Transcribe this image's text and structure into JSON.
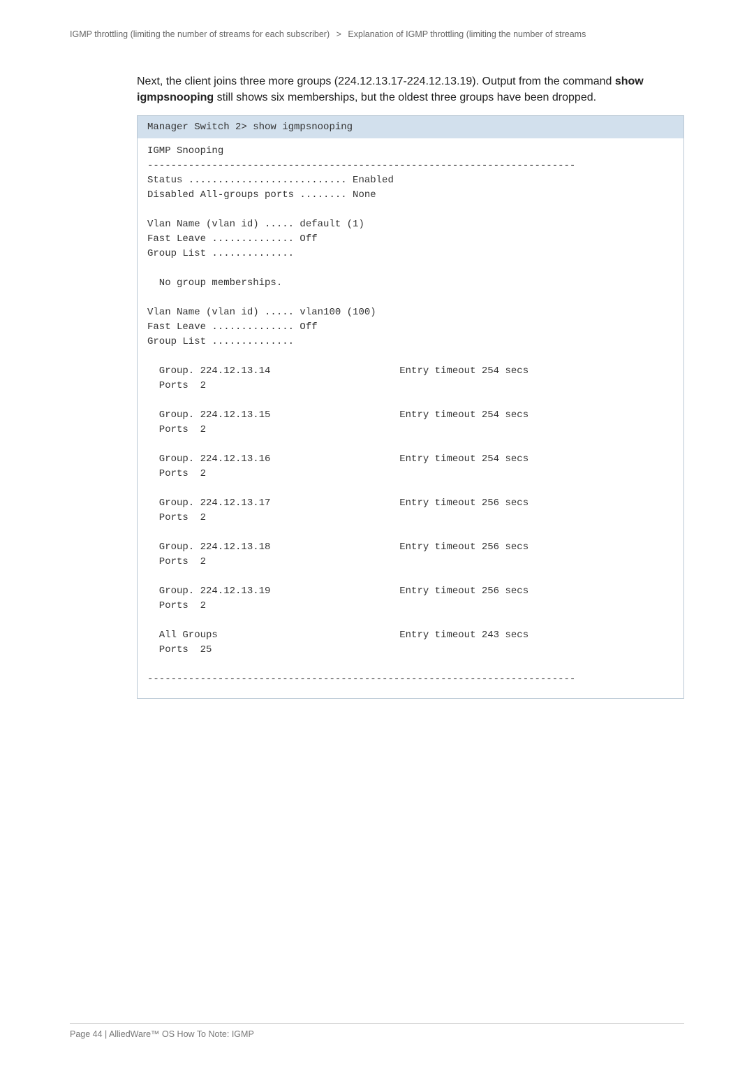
{
  "breadcrumb": {
    "part1": "IGMP throttling (limiting the number of streams for each subscriber)",
    "sep": ">",
    "part2": "Explanation of IGMP throttling (limiting the number of streams"
  },
  "paragraph": {
    "pre": "Next, the client joins three more groups (224.12.13.17-224.12.13.19). Output from the command ",
    "bold": "show igmpsnooping",
    "post": " still shows six memberships, but the oldest three groups have been dropped."
  },
  "terminal": {
    "header": "Manager Switch 2> show igmpsnooping",
    "title": "IGMP Snooping",
    "rule": "-------------------------------------------------------------------------",
    "status_line": "Status ........................... Enabled",
    "disabled_line": "Disabled All-groups ports ........ None",
    "vlan1_name": "Vlan Name (vlan id) ..... default (1)",
    "vlan1_fast": "Fast Leave .............. Off",
    "vlan1_group": "Group List ..............",
    "no_members": "  No group memberships.",
    "vlan2_name": "Vlan Name (vlan id) ..... vlan100 (100)",
    "vlan2_fast": "Fast Leave .............. Off",
    "vlan2_group": "Group List ..............",
    "g1_a": "  Group. 224.12.13.14                      Entry timeout 254 secs",
    "g1_b": "  Ports  2",
    "g2_a": "  Group. 224.12.13.15                      Entry timeout 254 secs",
    "g2_b": "  Ports  2",
    "g3_a": "  Group. 224.12.13.16                      Entry timeout 254 secs",
    "g3_b": "  Ports  2",
    "g4_a": "  Group. 224.12.13.17                      Entry timeout 256 secs",
    "g4_b": "  Ports  2",
    "g5_a": "  Group. 224.12.13.18                      Entry timeout 256 secs",
    "g5_b": "  Ports  2",
    "g6_a": "  Group. 224.12.13.19                      Entry timeout 256 secs",
    "g6_b": "  Ports  2",
    "all_a": "  All Groups                               Entry timeout 243 secs",
    "all_b": "  Ports  25",
    "rule2": "-------------------------------------------------------------------------"
  },
  "footer": {
    "text": "Page 44 | AlliedWare™ OS How To Note: IGMP"
  },
  "colors": {
    "background": "#ffffff",
    "text": "#333333",
    "muted_text": "#666666",
    "border": "#b9c7d4",
    "header_bg": "#d2e0ed",
    "divider": "#cfcfcf"
  },
  "typography": {
    "body_font": "Arial, Helvetica, sans-serif",
    "mono_font": "Courier New, monospace",
    "breadcrumb_fontsize": 12.5,
    "paragraph_fontsize": 16,
    "terminal_fontsize": 14,
    "footer_fontsize": 12.5
  }
}
